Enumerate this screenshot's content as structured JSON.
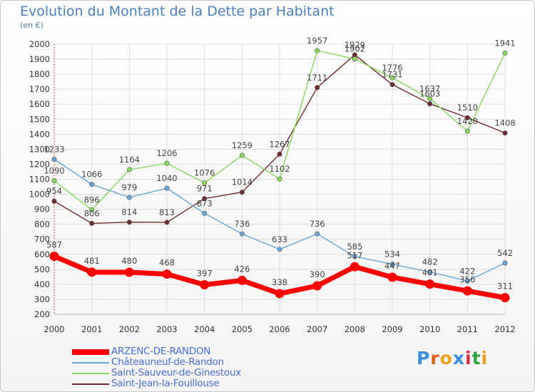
{
  "chart_data": {
    "type": "line",
    "title": "Evolution du Montant de la Dette par Habitant",
    "subtitle": "(en €)",
    "xlabel": "",
    "ylabel": "",
    "ylim": [
      200,
      2000
    ],
    "yticks": [
      "200",
      "300",
      "400",
      "500",
      "600",
      "700",
      "800",
      "900",
      "1000",
      "1100",
      "1200",
      "1300",
      "1400",
      "1500",
      "1600",
      "1700",
      "1800",
      "1900",
      "2000"
    ],
    "categories": [
      "2000",
      "2001",
      "2002",
      "2003",
      "2004",
      "2005",
      "2006",
      "2007",
      "2008",
      "2009",
      "2010",
      "2011",
      "2012"
    ],
    "grid": true,
    "legend_position": "bottom-left",
    "series": [
      {
        "name": "ARZENC-DE-RANDON",
        "color": "#ff0000",
        "values": [
          587,
          481,
          480,
          468,
          397,
          426,
          338,
          390,
          517,
          447,
          401,
          356,
          311
        ],
        "labels": [
          "587",
          "481",
          "480",
          "468",
          "397",
          "426",
          "338",
          "390",
          "517",
          "447",
          "401",
          "356",
          "311"
        ]
      },
      {
        "name": "Châteauneuf-de-Randon",
        "color": "#6aa6d8",
        "values": [
          1233,
          1066,
          979,
          1040,
          873,
          736,
          633,
          736,
          585,
          534,
          482,
          422,
          542
        ],
        "labels": [
          "1233",
          "1066",
          "979",
          "1040",
          "873",
          "736",
          "633",
          "736",
          "585",
          "534",
          "482",
          "422",
          "542"
        ]
      },
      {
        "name": "Saint-Sauveur-de-Ginestoux",
        "color": "#88d860",
        "values": [
          1090,
          896,
          1164,
          1206,
          1076,
          1259,
          1102,
          1957,
          1902,
          1776,
          1637,
          1420,
          1941
        ],
        "labels": [
          "1090",
          "896",
          "1164",
          "1206",
          "1076",
          "1259",
          "1102",
          "1957",
          "1902",
          "1776",
          "1637",
          "1420",
          "1941"
        ]
      },
      {
        "name": "Saint-Jean-la-Fouillouse",
        "color": "#6e2c2c",
        "values": [
          954,
          806,
          814,
          813,
          971,
          1014,
          1267,
          1711,
          1929,
          1731,
          1603,
          1510,
          1408
        ],
        "labels": [
          "954",
          "806",
          "814",
          "813",
          "971",
          "1014",
          "1267",
          "1711",
          "1929",
          "1731",
          "1603",
          "1510",
          "1408"
        ]
      }
    ]
  },
  "logo": {
    "text": "Proxiti",
    "letters": [
      "P",
      "r",
      "o",
      "x",
      "i",
      "t",
      "i"
    ],
    "colors": [
      "#3a8ee0",
      "#e06020",
      "#f0a020",
      "#3a8ee0",
      "#e03040",
      "#30a040",
      "#f0a020"
    ]
  }
}
